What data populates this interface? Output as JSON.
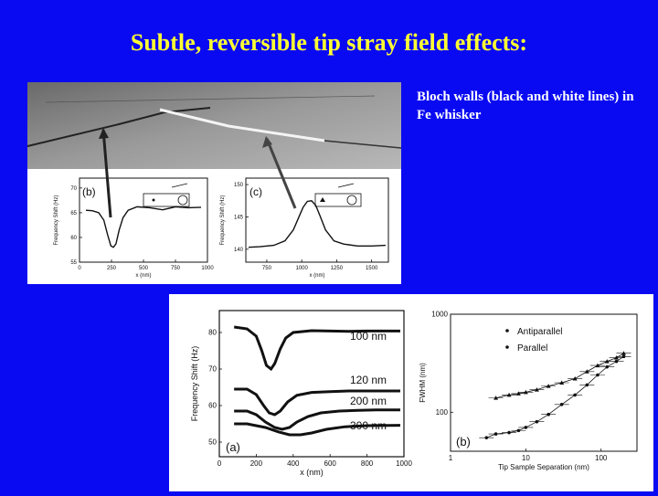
{
  "slide": {
    "title": "Subtle, reversible tip stray field effects:",
    "caption": "Bloch walls (black and white lines) in Fe whisker"
  },
  "colors": {
    "background": "#0a0af2",
    "title": "#ffff33",
    "caption": "#ffffff"
  },
  "chart_data": [
    {
      "type": "line",
      "panel_label": "(b)",
      "ylabel": "Frequency Shift (Hz)",
      "xlabel": "x (nm)",
      "x_ticks": [
        "0",
        "250",
        "500",
        "750",
        "1000"
      ],
      "y_ticks": [
        "55",
        "60",
        "65",
        "70"
      ],
      "xlim": [
        0,
        1000
      ],
      "ylim": [
        55,
        72
      ],
      "series": [
        {
          "x": [
            50,
            100,
            150,
            190,
            220,
            245,
            265,
            285,
            310,
            340,
            380,
            450,
            550,
            650,
            750,
            850,
            950
          ],
          "y": [
            65.5,
            65.4,
            65.0,
            63.5,
            60.5,
            58.3,
            58.0,
            58.7,
            61.5,
            64.0,
            65.5,
            66.2,
            66.0,
            65.6,
            66.2,
            66.0,
            66.1
          ]
        }
      ]
    },
    {
      "type": "line",
      "panel_label": "(c)",
      "ylabel": "Frequency Shift (Hz)",
      "xlabel": "x (nm)",
      "x_ticks": [
        "750",
        "1000",
        "1250",
        "1500"
      ],
      "y_ticks": [
        "140",
        "145",
        "150"
      ],
      "xlim": [
        600,
        1620
      ],
      "ylim": [
        138,
        151
      ],
      "series": [
        {
          "x": [
            620,
            700,
            800,
            880,
            940,
            980,
            1010,
            1040,
            1070,
            1100,
            1130,
            1170,
            1230,
            1300,
            1400,
            1500,
            1600
          ],
          "y": [
            140.3,
            140.4,
            140.6,
            141.3,
            143.0,
            145.0,
            146.5,
            147.4,
            147.5,
            146.8,
            145.2,
            143.0,
            141.3,
            140.8,
            140.5,
            140.5,
            140.6
          ]
        }
      ]
    },
    {
      "type": "line",
      "panel_label": "(a)",
      "ylabel": "Frequency Shift (Hz)",
      "xlabel": "x (nm)",
      "x_ticks": [
        "0",
        "200",
        "400",
        "600",
        "800",
        "1000"
      ],
      "y_ticks": [
        "50",
        "60",
        "70",
        "80"
      ],
      "xlim": [
        0,
        1000
      ],
      "ylim": [
        46,
        86
      ],
      "annotations": [
        "100 nm",
        "120 nm",
        "200 nm",
        "300 nm"
      ],
      "series": [
        {
          "name": "100 nm",
          "x": [
            80,
            150,
            200,
            230,
            255,
            280,
            300,
            330,
            360,
            400,
            500,
            600,
            700,
            800,
            900,
            980
          ],
          "y": [
            81.5,
            81.0,
            79.0,
            75.0,
            71.0,
            70.0,
            71.5,
            75.5,
            78.5,
            80.0,
            80.5,
            80.4,
            80.3,
            80.4,
            80.4,
            80.4
          ]
        },
        {
          "name": "120 nm",
          "x": [
            80,
            150,
            200,
            240,
            270,
            300,
            330,
            370,
            420,
            500,
            600,
            700,
            800,
            900,
            980
          ],
          "y": [
            64.5,
            64.5,
            63.0,
            60.0,
            58.0,
            57.5,
            58.5,
            61.0,
            62.8,
            63.6,
            63.8,
            64.0,
            64.0,
            64.0,
            64.0
          ]
        },
        {
          "name": "200 nm",
          "x": [
            80,
            150,
            200,
            250,
            300,
            340,
            380,
            420,
            480,
            550,
            650,
            750,
            850,
            980
          ],
          "y": [
            58.5,
            58.5,
            57.5,
            55.5,
            54.0,
            53.5,
            54.0,
            55.5,
            57.0,
            58.0,
            58.5,
            58.7,
            58.8,
            58.8
          ]
        },
        {
          "name": "300 nm",
          "x": [
            80,
            150,
            250,
            320,
            380,
            440,
            500,
            580,
            680,
            800,
            980
          ],
          "y": [
            55.0,
            55.0,
            54.0,
            52.8,
            52.0,
            52.0,
            52.5,
            53.5,
            54.2,
            54.5,
            54.6
          ]
        }
      ]
    },
    {
      "type": "scatter",
      "panel_label": "(b)",
      "ylabel": "FWHM (nm)",
      "xlabel": "Tip Sample Separation (nm)",
      "x_ticks": [
        "1",
        "10",
        "100"
      ],
      "y_ticks": [
        "100",
        "1000"
      ],
      "xscale": "log",
      "yscale": "log",
      "xlim": [
        1,
        300
      ],
      "ylim": [
        40,
        1000
      ],
      "legend_position": "top-right",
      "series": [
        {
          "name": "Antiparallel",
          "marker": "triangle",
          "x": [
            4,
            6,
            8,
            10,
            14,
            20,
            30,
            45,
            65,
            90,
            120,
            160,
            200
          ],
          "y": [
            140,
            150,
            155,
            160,
            170,
            185,
            200,
            220,
            260,
            300,
            330,
            360,
            400
          ]
        },
        {
          "name": "Parallel",
          "marker": "circle",
          "x": [
            3,
            4,
            6,
            8,
            10,
            14,
            20,
            30,
            45,
            65,
            90,
            120,
            160,
            200
          ],
          "y": [
            55,
            60,
            62,
            65,
            70,
            80,
            95,
            120,
            150,
            190,
            240,
            290,
            330,
            370
          ]
        }
      ]
    }
  ]
}
